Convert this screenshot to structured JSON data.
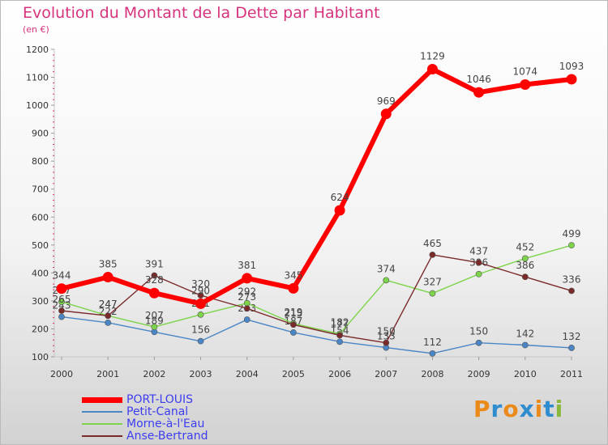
{
  "title": "Evolution du Montant de la Dette par Habitant",
  "subtitle": "(en €)",
  "brand": {
    "letters": [
      "P",
      "r",
      "o",
      "x",
      "i",
      "t",
      "i"
    ],
    "colors": [
      "#ea8a1b",
      "#2f8ccf",
      "#ea8a1b",
      "#2f8ccf",
      "#ea8a1b",
      "#2f8ccf",
      "#8ab83a"
    ]
  },
  "chart_data": {
    "type": "line",
    "title": "Evolution du Montant de la Dette par Habitant",
    "ylabel": "(en €)",
    "xlabel": "",
    "x": [
      "2000",
      "2001",
      "2002",
      "2003",
      "2004",
      "2005",
      "2006",
      "2007",
      "2008",
      "2009",
      "2010",
      "2011"
    ],
    "ylim": [
      100,
      1200
    ],
    "yticks": [
      100,
      200,
      300,
      400,
      500,
      600,
      700,
      800,
      900,
      1000,
      1100,
      1200
    ],
    "grid": false,
    "legend_position": "bottom-left",
    "series": [
      {
        "name": "PORT-LOUIS",
        "color": "#ff0000",
        "emphasis": true,
        "values": [
          344,
          385,
          328,
          290,
          381,
          345,
          624,
          969,
          1129,
          1046,
          1074,
          1093
        ],
        "labels": [
          "344",
          "385",
          "328",
          "290",
          "381",
          "345",
          "624",
          "969",
          "1129",
          "1046",
          "1074",
          "1093"
        ]
      },
      {
        "name": "Petit-Canal",
        "color": "#4a86c5",
        "values": [
          243,
          222,
          189,
          156,
          233,
          187,
          154,
          133,
          112,
          150,
          142,
          132
        ],
        "labels": [
          "243",
          "222",
          "189",
          "156",
          "233",
          "187",
          "154",
          "133",
          "112",
          "150",
          "142",
          "132"
        ]
      },
      {
        "name": "Morne-à-l'Eau",
        "color": "#7dd44a",
        "values": [
          297,
          247,
          207,
          251,
          292,
          219,
          182,
          374,
          327,
          396,
          452,
          499
        ],
        "labels": [
          "297",
          "247",
          "207",
          "251",
          "292",
          "219",
          "182",
          "374",
          "327",
          "396",
          "452",
          "499"
        ]
      },
      {
        "name": "Anse-Bertrand",
        "color": "#7b2a2a",
        "values": [
          265,
          247,
          391,
          320,
          273,
          215,
          177,
          150,
          465,
          437,
          386,
          336
        ],
        "labels": [
          "265",
          "247",
          "391",
          "320",
          "273",
          "215",
          "177",
          "150",
          "465",
          "437",
          "386",
          "336"
        ]
      }
    ]
  }
}
